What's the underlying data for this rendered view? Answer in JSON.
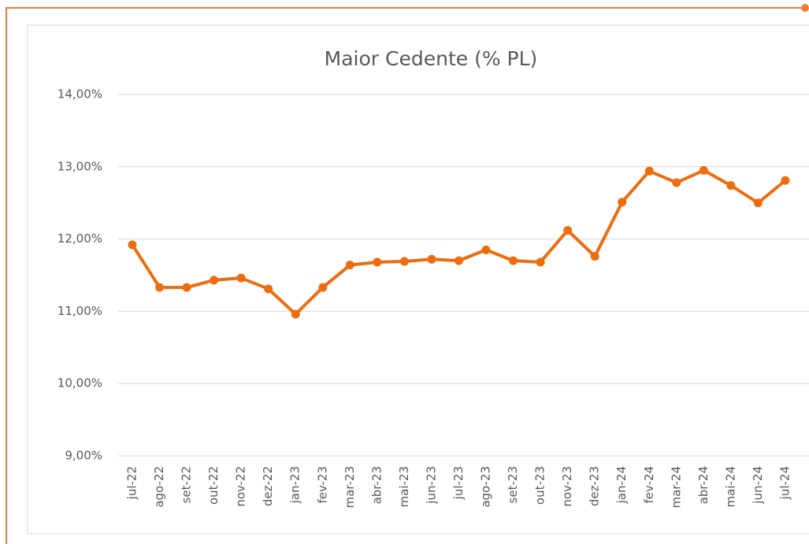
{
  "chart_data": {
    "type": "line",
    "title": "Maior Cedente (% PL)",
    "categories": [
      "jul-22",
      "ago-22",
      "set-22",
      "out-22",
      "nov-22",
      "dez-22",
      "jan-23",
      "fev-23",
      "mar-23",
      "abr-23",
      "mai-23",
      "jun-23",
      "jul-23",
      "ago-23",
      "set-23",
      "out-23",
      "nov-23",
      "dez-23",
      "jan-24",
      "fev-24",
      "mar-24",
      "abr-24",
      "mai-24",
      "jun-24",
      "jul-24"
    ],
    "series": [
      {
        "name": "Maior Cedente (% PL)",
        "color": "#ed6d0e",
        "values": [
          11.92,
          11.33,
          11.33,
          11.43,
          11.46,
          11.31,
          10.96,
          11.33,
          11.64,
          11.68,
          11.69,
          11.72,
          11.7,
          11.85,
          11.7,
          11.68,
          12.12,
          11.76,
          12.51,
          12.94,
          12.78,
          12.95,
          12.74,
          12.5,
          12.81
        ]
      }
    ],
    "ylim": [
      9,
      14
    ],
    "yticks": [
      {
        "value": 9,
        "label": "9,00%"
      },
      {
        "value": 10,
        "label": "10,00%"
      },
      {
        "value": 11,
        "label": "11,00%"
      },
      {
        "value": 12,
        "label": "12,00%"
      },
      {
        "value": 13,
        "label": "13,00%"
      },
      {
        "value": 14,
        "label": "14,00%"
      }
    ],
    "grid": true
  }
}
